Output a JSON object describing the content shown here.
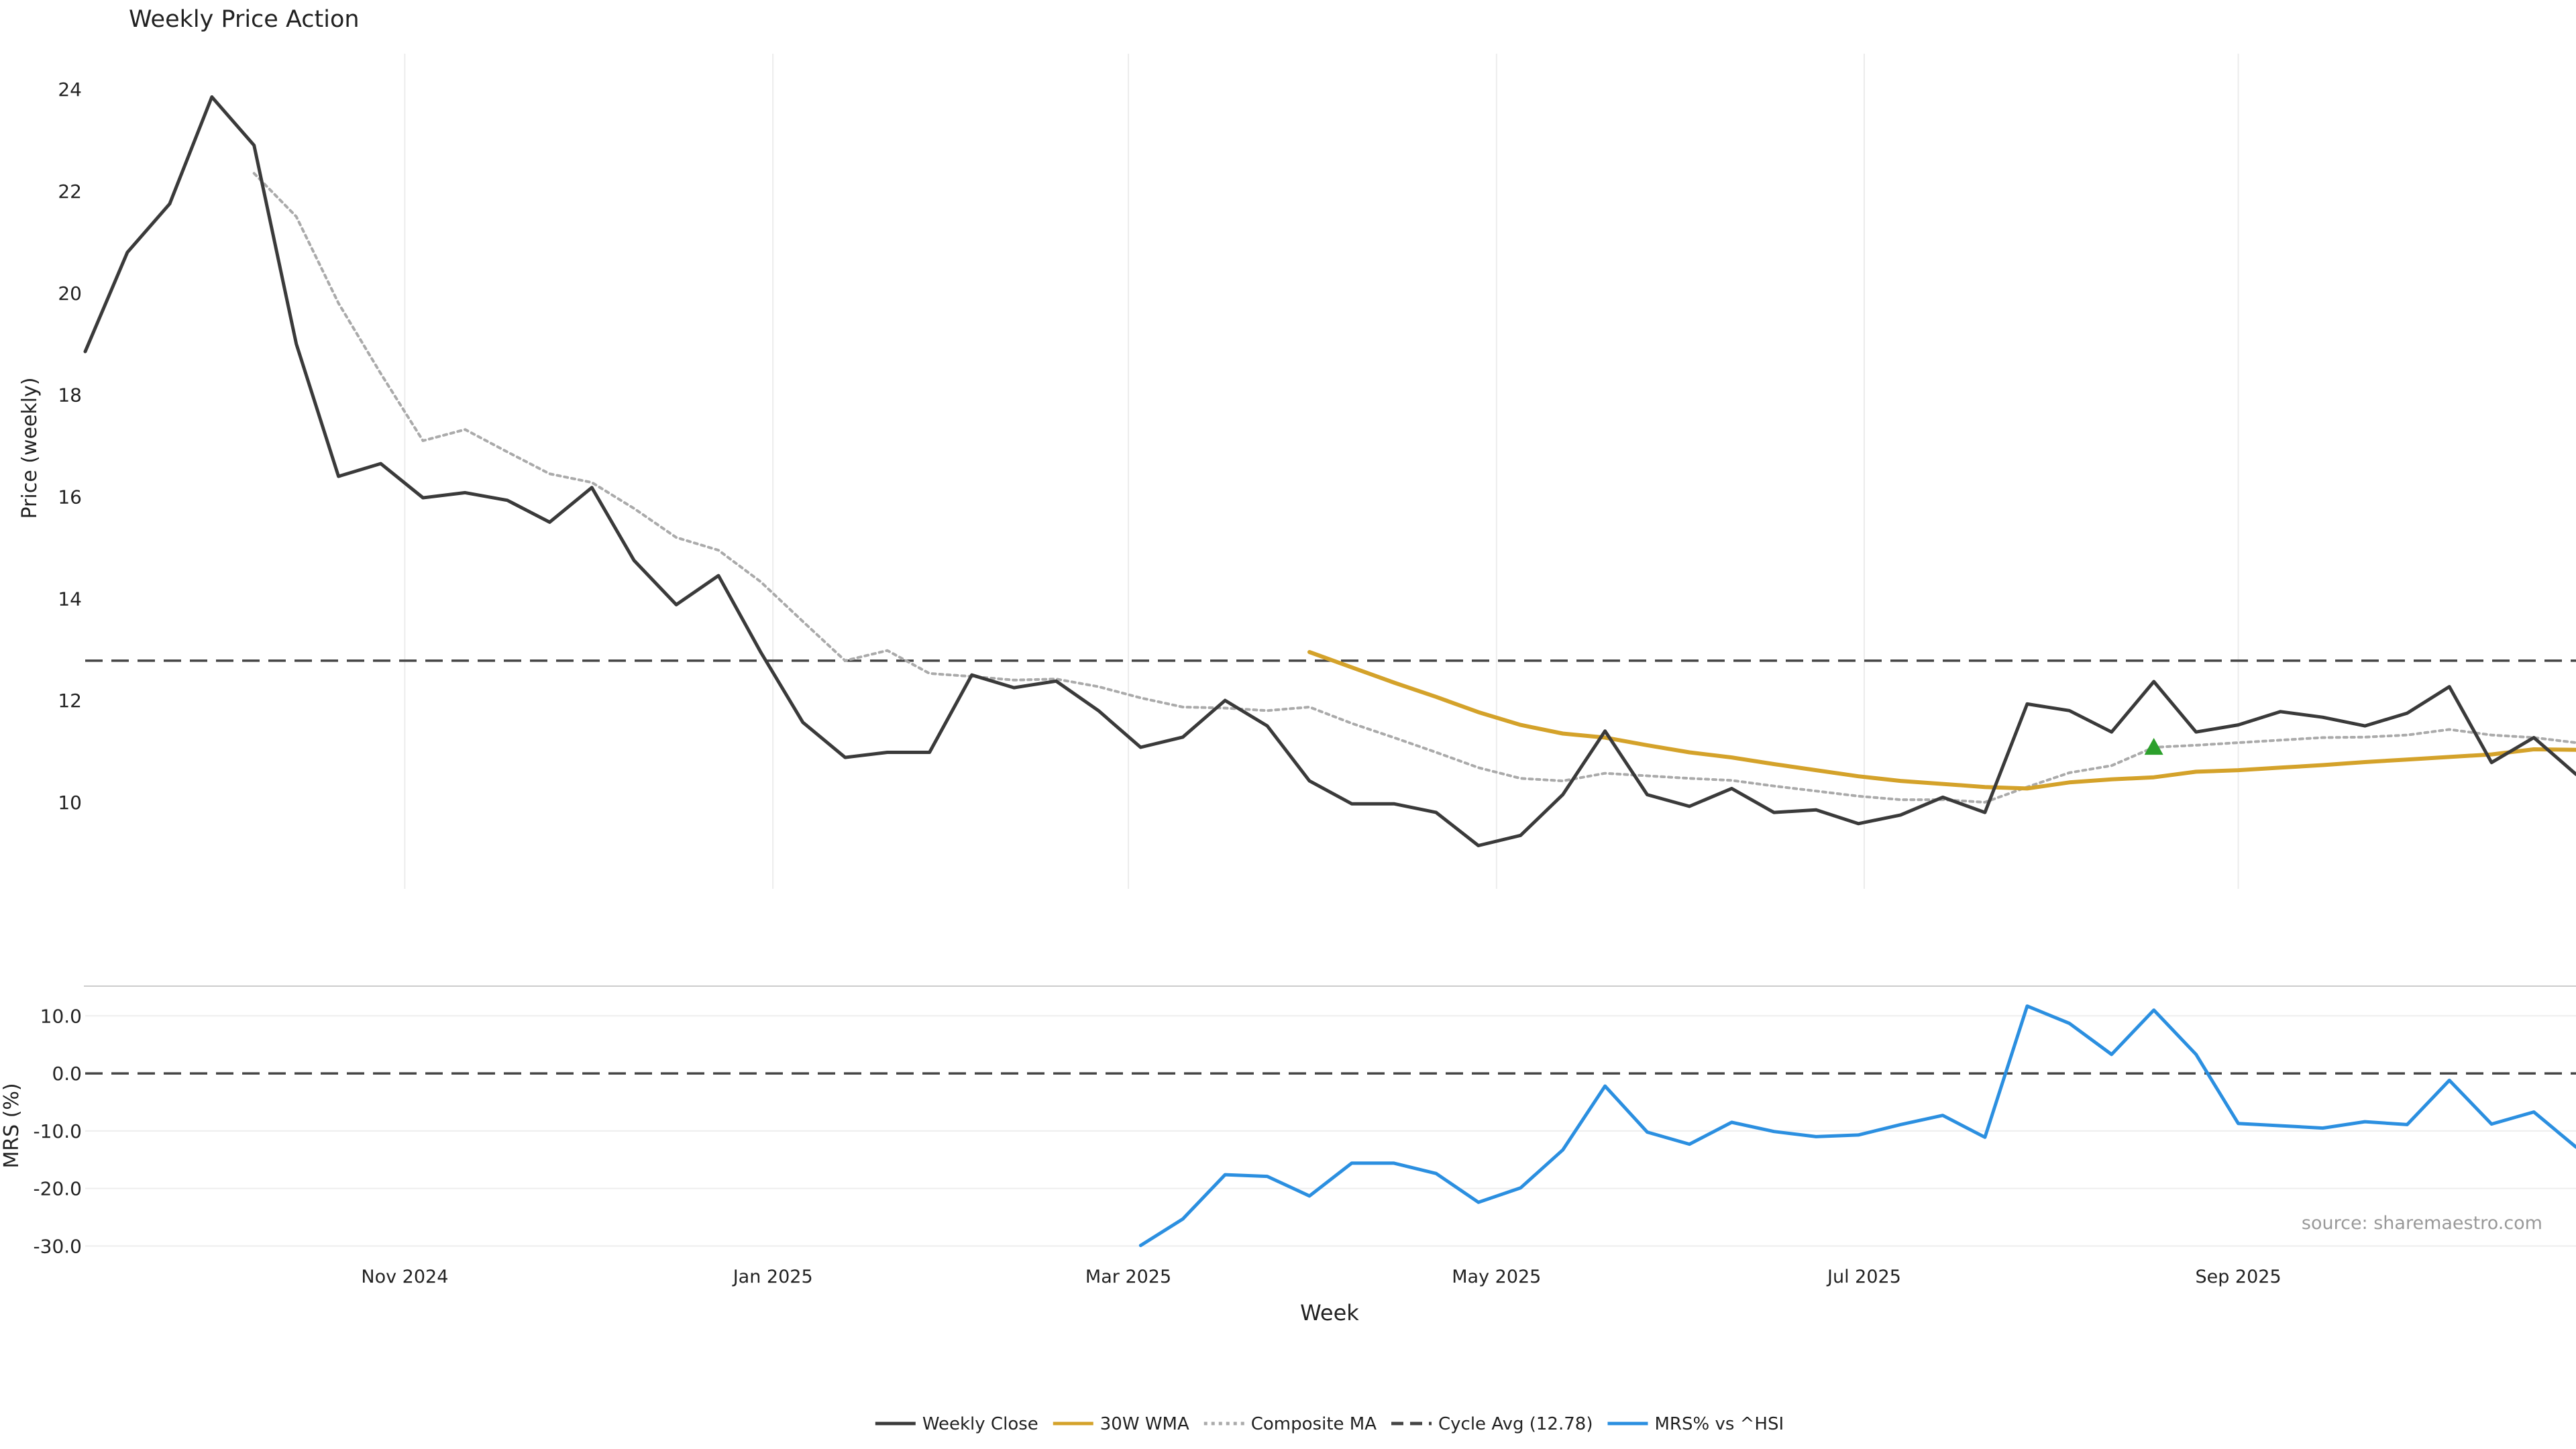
{
  "chart_data": [
    {
      "type": "line",
      "title": "Weekly Price Action",
      "ylabel": "Price (weekly)",
      "xlabel": "",
      "ylim": [
        8.3,
        24.7
      ],
      "yticks": [
        10,
        12,
        14,
        16,
        18,
        20,
        22,
        24
      ],
      "x_week_index_range": [
        0,
        59
      ],
      "x_gridlines": [
        7.57,
        16.29,
        24.71,
        33.43,
        42.14,
        51.0
      ],
      "series": [
        {
          "name": "Weekly Close",
          "color": "#3a3a3a",
          "style": "solid",
          "start": 0,
          "values": [
            18.85,
            20.8,
            21.75,
            23.85,
            22.9,
            19.0,
            16.4,
            16.65,
            15.98,
            16.08,
            15.93,
            15.5,
            16.18,
            14.75,
            13.88,
            14.45,
            12.95,
            11.57,
            10.88,
            10.98,
            10.98,
            12.5,
            12.25,
            12.38,
            11.8,
            11.08,
            11.28,
            12.0,
            11.5,
            10.42,
            9.97,
            9.97,
            9.8,
            9.15,
            9.35,
            10.15,
            11.4,
            10.15,
            9.92,
            10.27,
            9.8,
            9.85,
            9.58,
            9.75,
            10.1,
            9.8,
            11.93,
            11.8,
            11.38,
            12.37,
            11.38,
            11.52,
            11.78,
            11.67,
            11.5,
            11.75,
            12.27,
            10.78,
            11.27,
            10.55
          ]
        },
        {
          "name": "30W WMA",
          "color": "#d4a22a",
          "style": "solid",
          "start": 29,
          "values": [
            12.95,
            12.65,
            12.35,
            12.07,
            11.77,
            11.52,
            11.35,
            11.27,
            11.12,
            10.98,
            10.88,
            10.75,
            10.63,
            10.51,
            10.42,
            10.36,
            10.3,
            10.27,
            10.39,
            10.45,
            10.49,
            10.6,
            10.63,
            10.68,
            10.73,
            10.79,
            10.84,
            10.89,
            10.94,
            11.04,
            11.03
          ]
        },
        {
          "name": "Composite MA",
          "color": "#aaaaaa",
          "style": "dotted",
          "start": 4,
          "values": [
            22.35,
            21.5,
            19.8,
            18.42,
            17.1,
            17.32,
            16.88,
            16.45,
            16.28,
            15.77,
            15.2,
            14.95,
            14.33,
            13.55,
            12.78,
            12.98,
            12.53,
            12.47,
            12.4,
            12.42,
            12.27,
            12.05,
            11.87,
            11.85,
            11.8,
            11.87,
            11.55,
            11.27,
            10.98,
            10.68,
            10.47,
            10.42,
            10.57,
            10.52,
            10.47,
            10.43,
            10.32,
            10.22,
            10.12,
            10.05,
            10.05,
            10.0,
            10.3,
            10.58,
            10.72,
            11.08,
            11.12,
            11.17,
            11.22,
            11.27,
            11.28,
            11.32,
            11.43,
            11.32,
            11.27,
            11.17
          ]
        },
        {
          "name": "Cycle Avg (12.78)",
          "color": "#444444",
          "style": "dashed",
          "constant": 12.78
        }
      ],
      "markers": [
        {
          "type": "triangle-up",
          "color": "#2ca02c",
          "x": 49,
          "y": 11.08
        }
      ]
    },
    {
      "type": "line",
      "title": "",
      "ylabel": "MRS (%)",
      "xlabel": "Week",
      "ylim": [
        -31,
        14
      ],
      "yticks": [
        -30.0,
        -20.0,
        -10.0,
        0.0,
        10.0
      ],
      "ytick_labels": [
        "-30.0",
        "-20.0",
        "-10.0",
        "0.0",
        "10.0"
      ],
      "x_week_index_range": [
        0,
        59
      ],
      "x_tick_positions": [
        7.57,
        16.29,
        24.71,
        33.43,
        42.14,
        51.0
      ],
      "x_tick_labels": [
        "Nov 2024",
        "Jan 2025",
        "Mar 2025",
        "May 2025",
        "Jul 2025",
        "Sep 2025"
      ],
      "series": [
        {
          "name": "MRS% vs ^HSI",
          "color": "#2b8fe0",
          "style": "solid",
          "start": 25,
          "values": [
            -29.9,
            -25.3,
            -17.6,
            -17.9,
            -21.3,
            -15.6,
            -15.6,
            -17.4,
            -22.4,
            -19.9,
            -13.3,
            -2.2,
            -10.2,
            -12.3,
            -8.5,
            -10.1,
            -11.0,
            -10.7,
            -8.9,
            -7.3,
            -11.1,
            11.7,
            8.7,
            3.3,
            11.0,
            3.3,
            -8.7,
            -9.1,
            -9.5,
            -8.4,
            -8.9,
            -1.2,
            -8.8,
            -6.7,
            -12.8
          ]
        },
        {
          "name": "Zero line",
          "color": "#444444",
          "style": "dashed",
          "constant": 0.0
        }
      ],
      "annotations": [
        {
          "text": "source: sharemaestro.com",
          "position": "bottom-right"
        }
      ]
    }
  ],
  "legend": {
    "placement": "bottom-center",
    "entries": [
      {
        "label": "Weekly Close",
        "color": "#3a3a3a",
        "style": "solid"
      },
      {
        "label": "30W WMA",
        "color": "#d4a22a",
        "style": "solid"
      },
      {
        "label": "Composite MA",
        "color": "#aaaaaa",
        "style": "dotted"
      },
      {
        "label": "Cycle Avg (12.78)",
        "color": "#444444",
        "style": "dashed"
      },
      {
        "label": "MRS% vs ^HSI",
        "color": "#2b8fe0",
        "style": "solid"
      }
    ]
  }
}
